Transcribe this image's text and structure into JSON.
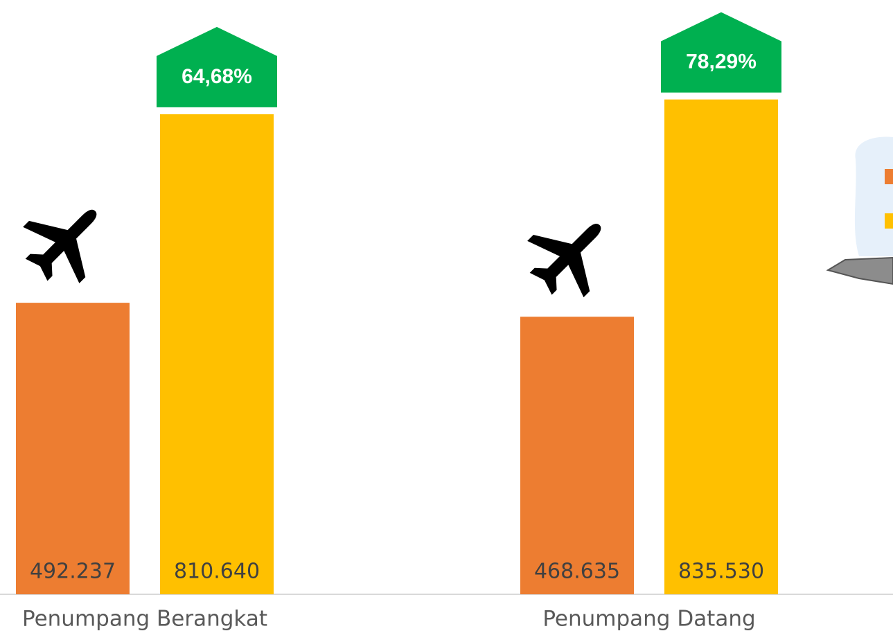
{
  "chart_data": {
    "type": "bar",
    "categories": [
      "Penumpang Berangkat",
      "Penumpang Datang"
    ],
    "series": [
      {
        "color": "#ed7d31",
        "values": [
          492237,
          468635
        ],
        "value_labels": [
          "492.237",
          "468.635"
        ]
      },
      {
        "color": "#ffc000",
        "values": [
          810640,
          835530
        ],
        "value_labels": [
          "810.640",
          "835.530"
        ]
      }
    ],
    "annotations": [
      "64,68%",
      "78,29%"
    ],
    "annotation_color": "#00b050",
    "ylim": [
      0,
      1000000
    ]
  }
}
